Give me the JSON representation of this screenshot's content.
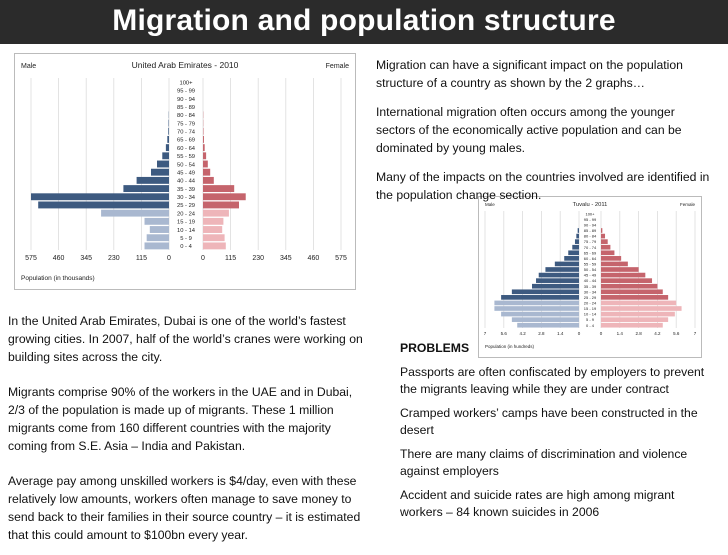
{
  "slide": {
    "title": "Migration and population structure",
    "intro": [
      "Migration can have a significant impact on the population structure of a country as shown by the 2 graphs…",
      "International migration often occurs among the younger sectors of the economically active population and can be dominated by young males.",
      "Many of the impacts on the countries involved are identified in the population change section."
    ],
    "uae_text": [
      "In the United Arab Emirates, Dubai is one of the world’s fastest growing cities. In 2007, half of the world’s cranes were working on building sites across the city.",
      "Migrants comprise 90% of the workers in the UAE and in Dubai, 2/3 of the population is made up of migrants. These 1 million migrants come from 160 different countries with the majority coming from S.E. Asia – India and Pakistan.",
      "Average pay among unskilled workers is $4/day, even with these relatively low amounts, workers often manage to save money to send back to their families in their source country – it is estimated that this could amount to $100bn every year."
    ],
    "problems_heading": "PROBLEMS",
    "problems": [
      "Passports are often confiscated by employers to prevent the migrants leaving while they are under contract",
      "Cramped workers’ camps have been constructed in the desert",
      "There are many claims of discrimination and violence against employers",
      "Accident and suicide rates are high among migrant workers – 84 known suicides in 2006"
    ]
  },
  "colors": {
    "male": "#3d5a80",
    "female": "#c5646c",
    "male_light": "#a9b8d0",
    "female_light": "#eeb5b9"
  },
  "chart_data": [
    {
      "type": "bar",
      "title": "United Arab Emirates - 2010",
      "left_label": "Male",
      "right_label": "Female",
      "xlabel": "Population (in thousands)",
      "categories": [
        "100+",
        "95 - 99",
        "90 - 94",
        "85 - 89",
        "80 - 84",
        "75 - 79",
        "70 - 74",
        "65 - 69",
        "60 - 64",
        "55 - 59",
        "50 - 54",
        "45 - 49",
        "40 - 44",
        "35 - 39",
        "30 - 34",
        "25 - 29",
        "20 - 24",
        "15 - 19",
        "10 - 14",
        "5 - 9",
        "0 - 4"
      ],
      "xticks_left": [
        "575",
        "460",
        "345",
        "230",
        "115",
        "0"
      ],
      "xticks_right": [
        "0",
        "115",
        "230",
        "345",
        "460",
        "575"
      ],
      "xlim": [
        0,
        575
      ],
      "series": [
        {
          "name": "Male",
          "values": [
            0,
            0,
            0,
            0,
            1,
            2,
            3,
            7,
            13,
            28,
            50,
            75,
            135,
            190,
            575,
            545,
            283,
            102,
            80,
            93,
            102
          ]
        },
        {
          "name": "Female",
          "values": [
            0,
            0,
            0,
            0,
            1,
            1,
            2,
            4,
            7,
            13,
            20,
            30,
            45,
            130,
            178,
            150,
            108,
            85,
            80,
            90,
            95
          ]
        }
      ]
    },
    {
      "type": "bar",
      "title": "Tuvalu - 2011",
      "left_label": "Male",
      "right_label": "Female",
      "xlabel": "Population (in hundreds)",
      "categories": [
        "100+",
        "95 - 99",
        "90 - 94",
        "85 - 89",
        "80 - 84",
        "75 - 79",
        "70 - 74",
        "65 - 69",
        "60 - 64",
        "55 - 59",
        "50 - 54",
        "45 - 49",
        "40 - 44",
        "35 - 39",
        "30 - 34",
        "25 - 29",
        "20 - 24",
        "15 - 19",
        "10 - 14",
        "5 - 9",
        "0 - 4"
      ],
      "xticks_left": [
        "7",
        "5.6",
        "4.2",
        "2.8",
        "1.4",
        "0"
      ],
      "xticks_right": [
        "0",
        "1.4",
        "2.8",
        "4.2",
        "5.6",
        "7"
      ],
      "xlim": [
        0,
        7
      ],
      "series": [
        {
          "name": "Male",
          "values": [
            0,
            0,
            0,
            0.1,
            0.2,
            0.3,
            0.5,
            0.8,
            1.1,
            1.8,
            2.5,
            3.0,
            3.2,
            3.5,
            5.0,
            5.8,
            6.3,
            6.3,
            5.8,
            5.0,
            4.6
          ]
        },
        {
          "name": "Female",
          "values": [
            0,
            0,
            0,
            0.1,
            0.3,
            0.5,
            0.7,
            1.0,
            1.5,
            2.0,
            2.8,
            3.3,
            3.8,
            4.2,
            4.6,
            5.0,
            5.6,
            6.0,
            5.5,
            5.0,
            4.6
          ]
        }
      ]
    }
  ]
}
